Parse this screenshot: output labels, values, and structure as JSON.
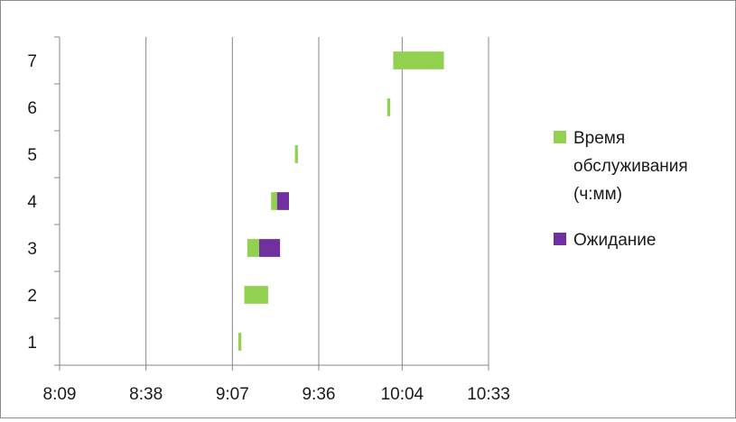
{
  "chart_data": {
    "type": "bar",
    "orientation": "horizontal",
    "stacked": true,
    "categories": [
      "1",
      "2",
      "3",
      "4",
      "5",
      "6",
      "7"
    ],
    "x_ticks": [
      "8:09",
      "8:38",
      "9:07",
      "9:36",
      "10:04",
      "10:33"
    ],
    "xlim": [
      "8:09",
      "10:33"
    ],
    "grid": true,
    "legend_position": "right",
    "series": [
      {
        "name": "Время обслуживания (ч:мм)",
        "legend_lines": [
          "Время",
          "обслуживания",
          "(ч:мм)"
        ],
        "color": "#92d050",
        "segments": [
          {
            "category": "1",
            "start": "9:09",
            "end": "9:10"
          },
          {
            "category": "2",
            "start": "9:11",
            "end": "9:19"
          },
          {
            "category": "3",
            "start": "9:12",
            "end": "9:16"
          },
          {
            "category": "4",
            "start": "9:20",
            "end": "9:22"
          },
          {
            "category": "5",
            "start": "9:28",
            "end": "9:29"
          },
          {
            "category": "6",
            "start": "9:59",
            "end": "10:00"
          },
          {
            "category": "7",
            "start": "10:01",
            "end": "10:18"
          }
        ]
      },
      {
        "name": "Ожидание",
        "legend_lines": [
          "Ожидание"
        ],
        "color": "#7030a0",
        "segments": [
          {
            "category": "3",
            "start": "9:16",
            "end": "9:23"
          },
          {
            "category": "4",
            "start": "9:22",
            "end": "9:26"
          }
        ]
      }
    ]
  }
}
